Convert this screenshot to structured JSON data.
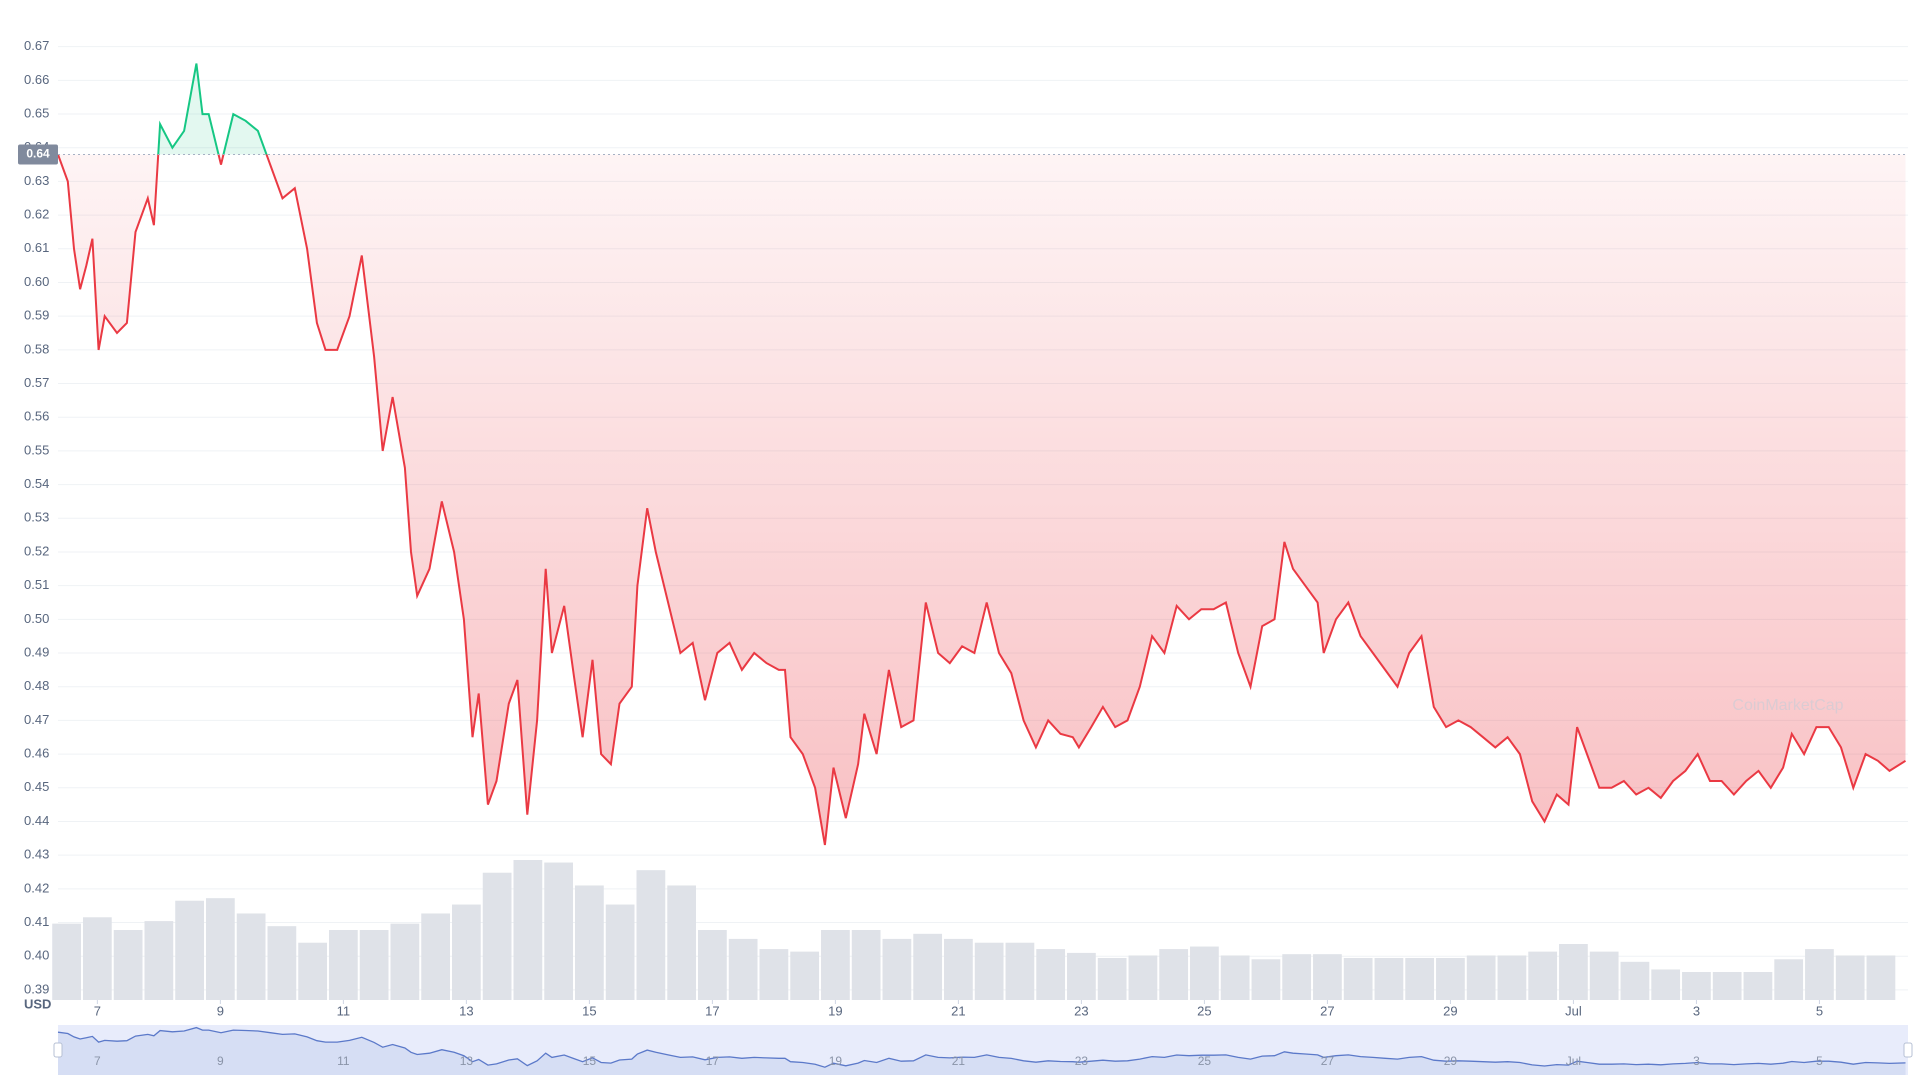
{
  "chart_data": {
    "type": "area-line",
    "currency_label": "USD",
    "watermark": "CoinMarketCap",
    "up_color": "#16c784",
    "down_color": "#ea3943",
    "grid": true,
    "reference": {
      "value": 0.638,
      "label": "0.64"
    },
    "xlim": [
      6.36,
      36.44
    ],
    "ylim": [
      0.387,
      0.68
    ],
    "xticks": [
      7,
      9,
      11,
      13,
      15,
      17,
      19,
      21,
      23,
      25,
      27,
      29,
      {
        "value": 31,
        "label": "Jul"
      },
      {
        "value": 33,
        "label": "3"
      },
      {
        "value": 35,
        "label": "5"
      }
    ],
    "yticks": [
      0.39,
      {
        "value": 0.4,
        "label": "0.40"
      },
      0.41,
      0.42,
      0.43,
      0.44,
      0.45,
      0.46,
      0.47,
      0.48,
      0.49,
      {
        "value": 0.5,
        "label": "0.50"
      },
      0.51,
      0.52,
      0.53,
      0.54,
      0.55,
      0.56,
      0.57,
      0.58,
      0.59,
      {
        "value": 0.6,
        "label": "0.60"
      },
      0.61,
      0.62,
      0.63,
      0.64,
      0.65,
      0.66,
      0.67
    ],
    "x": [
      6.36,
      6.52,
      6.62,
      6.72,
      6.82,
      6.92,
      7.02,
      7.12,
      7.32,
      7.48,
      7.62,
      7.82,
      7.92,
      8.02,
      8.22,
      8.41,
      8.61,
      8.71,
      8.81,
      9.01,
      9.21,
      9.41,
      9.61,
      9.81,
      10.01,
      10.21,
      10.41,
      10.57,
      10.71,
      10.9,
      11.1,
      11.3,
      11.5,
      11.64,
      11.8,
      12.0,
      12.1,
      12.2,
      12.4,
      12.6,
      12.8,
      12.96,
      13.1,
      13.2,
      13.35,
      13.49,
      13.69,
      13.83,
      13.99,
      14.15,
      14.29,
      14.39,
      14.59,
      14.75,
      14.89,
      15.05,
      15.19,
      15.35,
      15.49,
      15.69,
      15.78,
      15.94,
      16.08,
      16.28,
      16.48,
      16.68,
      16.88,
      17.08,
      17.28,
      17.48,
      17.68,
      17.88,
      18.08,
      18.18,
      18.27,
      18.47,
      18.67,
      18.83,
      18.97,
      19.17,
      19.37,
      19.47,
      19.67,
      19.87,
      20.07,
      20.27,
      20.47,
      20.67,
      20.86,
      21.06,
      21.26,
      21.46,
      21.66,
      21.86,
      22.06,
      22.26,
      22.46,
      22.66,
      22.86,
      22.96,
      23.16,
      23.35,
      23.55,
      23.75,
      23.95,
      24.15,
      24.35,
      24.55,
      24.75,
      24.95,
      25.15,
      25.35,
      25.55,
      25.75,
      25.94,
      26.14,
      26.3,
      26.44,
      26.64,
      26.84,
      26.94,
      27.14,
      27.34,
      27.54,
      27.74,
      27.94,
      28.14,
      28.33,
      28.53,
      28.73,
      28.93,
      29.13,
      29.33,
      29.53,
      29.73,
      29.93,
      30.13,
      30.33,
      30.53,
      30.73,
      30.92,
      31.06,
      31.22,
      31.42,
      31.62,
      31.82,
      32.02,
      32.22,
      32.42,
      32.62,
      32.82,
      33.02,
      33.22,
      33.41,
      33.61,
      33.81,
      34.01,
      34.21,
      34.41,
      34.55,
      34.75,
      34.95,
      35.15,
      35.35,
      35.55,
      35.75,
      35.95,
      36.14,
      36.4
    ],
    "values": [
      0.638,
      0.63,
      0.61,
      0.598,
      0.605,
      0.613,
      0.58,
      0.59,
      0.585,
      0.588,
      0.615,
      0.625,
      0.617,
      0.647,
      0.64,
      0.645,
      0.665,
      0.65,
      0.65,
      0.635,
      0.65,
      0.648,
      0.645,
      0.635,
      0.625,
      0.628,
      0.61,
      0.588,
      0.58,
      0.58,
      0.59,
      0.608,
      0.578,
      0.55,
      0.566,
      0.545,
      0.52,
      0.507,
      0.515,
      0.535,
      0.52,
      0.5,
      0.465,
      0.478,
      0.445,
      0.452,
      0.475,
      0.482,
      0.442,
      0.47,
      0.515,
      0.49,
      0.504,
      0.483,
      0.465,
      0.488,
      0.46,
      0.457,
      0.475,
      0.48,
      0.51,
      0.533,
      0.52,
      0.505,
      0.49,
      0.493,
      0.476,
      0.49,
      0.493,
      0.485,
      0.49,
      0.487,
      0.485,
      0.485,
      0.465,
      0.46,
      0.45,
      0.433,
      0.456,
      0.441,
      0.457,
      0.472,
      0.46,
      0.485,
      0.468,
      0.47,
      0.505,
      0.49,
      0.487,
      0.492,
      0.49,
      0.505,
      0.49,
      0.484,
      0.47,
      0.462,
      0.47,
      0.466,
      0.465,
      0.462,
      0.468,
      0.474,
      0.468,
      0.47,
      0.48,
      0.495,
      0.49,
      0.504,
      0.5,
      0.503,
      0.503,
      0.505,
      0.49,
      0.48,
      0.498,
      0.5,
      0.523,
      0.515,
      0.51,
      0.505,
      0.49,
      0.5,
      0.505,
      0.495,
      0.49,
      0.485,
      0.48,
      0.49,
      0.495,
      0.474,
      0.468,
      0.47,
      0.468,
      0.465,
      0.462,
      0.465,
      0.46,
      0.446,
      0.44,
      0.448,
      0.445,
      0.468,
      0.46,
      0.45,
      0.45,
      0.452,
      0.448,
      0.45,
      0.447,
      0.452,
      0.455,
      0.46,
      0.452,
      0.452,
      0.448,
      0.452,
      0.455,
      0.45,
      0.456,
      0.466,
      0.46,
      0.468,
      0.468,
      0.462,
      0.45,
      0.46,
      0.458,
      0.455,
      0.458
    ],
    "volume": {
      "color": "#dfe2e8",
      "x": [
        6.5,
        7,
        7.5,
        8,
        8.5,
        9,
        9.5,
        10,
        10.5,
        11,
        11.5,
        12,
        12.5,
        13,
        13.5,
        14,
        14.5,
        15,
        15.5,
        16,
        16.5,
        17,
        17.5,
        18,
        18.5,
        19,
        19.5,
        20,
        20.5,
        21,
        21.5,
        22,
        22.5,
        23,
        23.5,
        24,
        24.5,
        25,
        25.5,
        26,
        26.5,
        27,
        27.5,
        28,
        28.5,
        29,
        29.5,
        30,
        30.5,
        31,
        31.5,
        32,
        32.5,
        33,
        33.5,
        34,
        34.5,
        35,
        35.5,
        36
      ],
      "values": [
        60,
        65,
        55,
        62,
        78,
        80,
        68,
        58,
        45,
        55,
        55,
        60,
        68,
        75,
        100,
        110,
        108,
        90,
        75,
        102,
        90,
        55,
        48,
        40,
        38,
        55,
        55,
        48,
        52,
        48,
        45,
        45,
        40,
        37,
        33,
        35,
        40,
        42,
        35,
        32,
        36,
        36,
        33,
        33,
        33,
        33,
        35,
        35,
        38,
        44,
        38,
        30,
        24,
        22,
        22,
        22,
        32,
        40,
        35,
        35
      ]
    },
    "navigator": {
      "color": "#5b79c9",
      "fill": "#e8ecfb"
    }
  }
}
